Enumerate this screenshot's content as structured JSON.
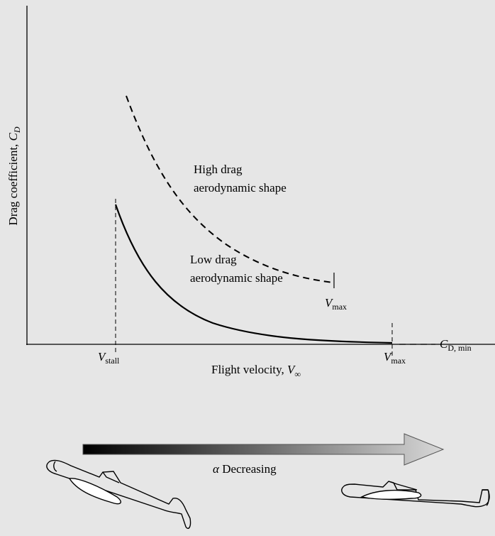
{
  "y_axis_label": {
    "text": "Drag coefficient, ",
    "symbol": "C",
    "subscript": "D"
  },
  "x_axis_label": {
    "text": "Flight velocity, ",
    "symbol": "V",
    "subscript": "∞"
  },
  "high_drag_label": [
    "High drag",
    "aerodynamic shape"
  ],
  "low_drag_label": [
    "Low drag",
    "aerodynamic shape"
  ],
  "high_drag_vmax": {
    "symbol": "V",
    "subscript": "max"
  },
  "v_stall": {
    "symbol": "V",
    "subscript": "stall"
  },
  "v_max": {
    "symbol": "V",
    "subscript": "max"
  },
  "cd_min": {
    "symbol": "C",
    "subscript": "D, min"
  },
  "arrow_label": {
    "symbol": "α",
    "text": " Decreasing"
  }
}
